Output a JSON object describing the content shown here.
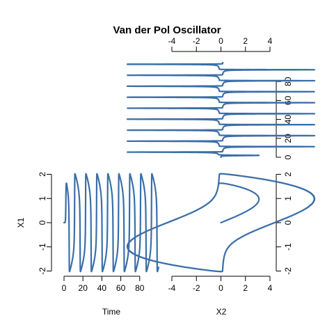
{
  "title": "Van der Pol Oscillator",
  "colors": {
    "trace": "#3b6ea8",
    "axis": "#000000",
    "background": "#ffffff"
  },
  "chart_data": [
    {
      "id": "time-series",
      "type": "line",
      "xlabel": "Time",
      "ylabel": "X1",
      "xlim": [
        0,
        100
      ],
      "ylim": [
        -2.1,
        2.1
      ],
      "xticks": [
        0,
        20,
        40,
        60,
        80
      ],
      "yticks": [
        -2,
        -1,
        0,
        1,
        2
      ],
      "series": [
        {
          "y": "X1",
          "x": "Time",
          "t_start": 0,
          "t_end": 100
        }
      ]
    },
    {
      "id": "x2-over-time",
      "type": "line",
      "xlabel": "",
      "ylabel": "",
      "xlim": [
        -4,
        4
      ],
      "ylim": [
        0,
        100
      ],
      "xticks": [
        -4,
        -2,
        0,
        2,
        4
      ],
      "yticks": [
        0,
        20,
        40,
        60,
        80
      ],
      "x_axis_side": "top",
      "y_axis_side": "right",
      "series": [
        {
          "x": "X2",
          "y": "Time",
          "t_start": 0,
          "t_end": 100
        }
      ]
    },
    {
      "id": "phase-portrait",
      "type": "line",
      "xlabel": "X2",
      "ylabel": "",
      "xlim": [
        -4,
        4
      ],
      "ylim": [
        -2.1,
        2.1
      ],
      "xticks": [
        -4,
        -2,
        0,
        2,
        4
      ],
      "yticks": [
        -2,
        -1,
        0,
        1,
        2
      ],
      "y_axis_side": "right",
      "series": [
        {
          "x": "X2",
          "y": "X1",
          "t_start": 0,
          "t_end": 100
        }
      ]
    }
  ]
}
